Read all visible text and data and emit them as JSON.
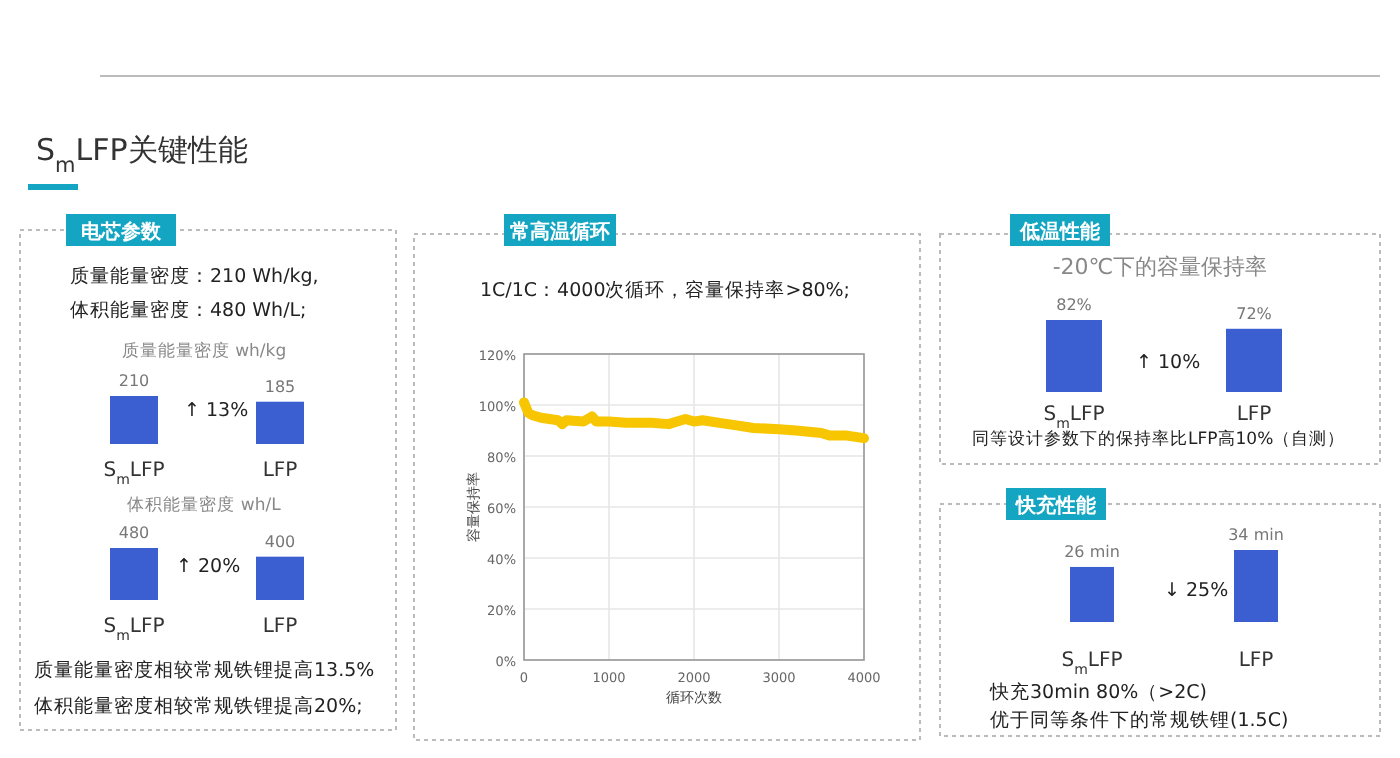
{
  "chart_data": [
    {
      "type": "other",
      "title": "S$_{m}$LFP关键性能"
    },
    {
      "type": "bar",
      "title": "质量能量密度 wh/kg",
      "categories": [
        "S$_{m}$LFP",
        "LFP"
      ],
      "values": [
        210,
        185
      ],
      "color": "#3b5fd0",
      "data_labels": true,
      "annotations": [
        "电芯参数",
        "质量能量密度：210 Wh/kg,",
        "体积能量密度：480 Wh/L;",
        "↑ 13%"
      ]
    },
    {
      "type": "bar",
      "title": "体积能量密度 wh/L",
      "categories": [
        "S$_{m}$LFP",
        "LFP"
      ],
      "values": [
        480,
        400
      ],
      "color": "#3b5fd0",
      "data_labels": true,
      "annotations": [
        "↑ 20%",
        "质量能量密度相较常规铁锂提高13.5%",
        "体积能量密度相较常规铁锂提高20%;"
      ]
    },
    {
      "type": "line",
      "title": "1C/1C：4000次循环，容量保持率>80%;",
      "xlabel": "循环次数",
      "ylabel": "容量保持率",
      "annotations": [
        "常高温循环"
      ],
      "grid": true,
      "xlim": [
        0,
        4000
      ],
      "xticks": [
        0,
        1000,
        2000,
        3000,
        4000
      ],
      "ylim": [
        0,
        120
      ],
      "yticks": [
        {
          "value": 0,
          "label": "0%"
        },
        {
          "value": 20,
          "label": "20%"
        },
        {
          "value": 40,
          "label": "40%"
        },
        {
          "value": 60,
          "label": "60%"
        },
        {
          "value": 80,
          "label": "80%"
        },
        {
          "value": 100,
          "label": "100%"
        },
        {
          "value": 120,
          "label": "120%"
        }
      ],
      "series": [
        {
          "color": "#f7c600",
          "x": [
            0,
            50,
            100,
            200,
            300,
            400,
            450,
            500,
            700,
            800,
            850,
            1000,
            1200,
            1500,
            1700,
            1900,
            2000,
            2100,
            2300,
            2500,
            2700,
            3000,
            3200,
            3500,
            3600,
            3800,
            4000
          ],
          "values": [
            101,
            97,
            96,
            95,
            94.5,
            94,
            92.5,
            94,
            93.5,
            95.5,
            93.5,
            93.5,
            93,
            93,
            92.5,
            94.5,
            93.5,
            94,
            93,
            92,
            91,
            90.5,
            90,
            89,
            88,
            88,
            87
          ]
        }
      ]
    },
    {
      "type": "bar",
      "title": "-20℃下的容量保持率",
      "categories": [
        "S$_{m}$LFP",
        "LFP"
      ],
      "values": [
        82,
        72
      ],
      "value_labels": [
        "82%",
        "72%"
      ],
      "color": "#3b5fd0",
      "annotations": [
        "低温性能",
        "↑ 10%",
        "同等设计参数下的保持率比LFP高10%（自测）"
      ]
    },
    {
      "type": "bar",
      "categories": [
        "S$_{m}$LFP",
        "LFP"
      ],
      "values": [
        26,
        34
      ],
      "value_labels": [
        "26 min",
        "34 min"
      ],
      "color": "#3b5fd0",
      "annotations": [
        "快充性能",
        "↓ 25%",
        "快充30min 80%（>2C)",
        "优于同等条件下的常规铁锂(1.5C)"
      ]
    }
  ]
}
